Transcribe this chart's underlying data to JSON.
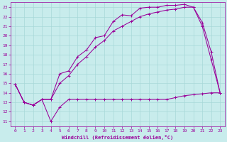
{
  "xlabel": "Windchill (Refroidissement éolien,°C)",
  "bg_color": "#c8ecec",
  "grid_color": "#a8d8d8",
  "line_color": "#990099",
  "x_ticks": [
    0,
    1,
    2,
    3,
    4,
    5,
    6,
    7,
    8,
    9,
    10,
    11,
    12,
    13,
    14,
    15,
    16,
    17,
    18,
    19,
    20,
    21,
    22,
    23
  ],
  "y_ticks": [
    11,
    12,
    13,
    14,
    15,
    16,
    17,
    18,
    19,
    20,
    21,
    22,
    23
  ],
  "xlim": [
    -0.5,
    23.5
  ],
  "ylim": [
    10.5,
    23.5
  ],
  "line1_x": [
    0,
    1,
    2,
    3,
    4,
    5,
    6,
    7,
    8,
    9,
    10,
    11,
    12,
    13,
    14,
    15,
    16,
    17,
    18,
    19,
    20,
    21,
    22,
    23
  ],
  "line1_y": [
    14.9,
    13.0,
    12.7,
    13.3,
    11.0,
    12.5,
    13.3,
    13.3,
    13.3,
    13.3,
    13.3,
    13.3,
    13.3,
    13.3,
    13.3,
    13.3,
    13.3,
    13.3,
    13.5,
    13.7,
    13.8,
    13.9,
    14.0,
    14.0
  ],
  "line2_x": [
    0,
    1,
    2,
    3,
    4,
    5,
    6,
    7,
    8,
    9,
    10,
    11,
    12,
    13,
    14,
    15,
    16,
    17,
    18,
    19,
    20,
    21,
    22,
    23
  ],
  "line2_y": [
    14.9,
    13.0,
    12.7,
    13.3,
    13.3,
    16.0,
    16.3,
    17.8,
    18.5,
    19.8,
    20.0,
    21.5,
    22.2,
    22.1,
    22.9,
    23.0,
    23.0,
    23.2,
    23.2,
    23.3,
    23.0,
    21.4,
    18.3,
    14.0
  ],
  "line3_x": [
    0,
    1,
    2,
    3,
    4,
    5,
    6,
    7,
    8,
    9,
    10,
    11,
    12,
    13,
    14,
    15,
    16,
    17,
    18,
    19,
    20,
    21,
    22,
    23
  ],
  "line3_y": [
    14.9,
    13.0,
    12.7,
    13.3,
    13.3,
    15.0,
    15.8,
    17.0,
    17.8,
    18.8,
    19.5,
    20.5,
    21.0,
    21.5,
    22.0,
    22.3,
    22.5,
    22.7,
    22.8,
    23.0,
    23.0,
    21.0,
    17.5,
    14.0
  ]
}
